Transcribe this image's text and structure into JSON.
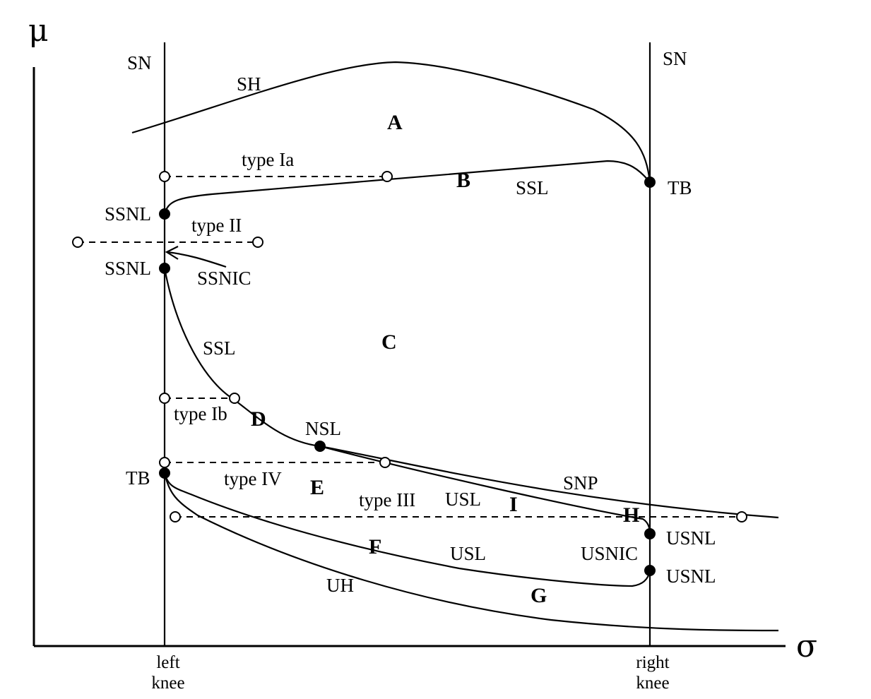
{
  "axes": {
    "y_symbol": "μ",
    "x_symbol": "σ"
  },
  "knees": {
    "left_line1": "left",
    "left_line2": "knee",
    "right_line1": "right",
    "right_line2": "knee"
  },
  "regions": [
    "A",
    "B",
    "C",
    "D",
    "E",
    "F",
    "G",
    "H",
    "I"
  ],
  "curve_labels": {
    "sn_left": "SN",
    "sn_right": "SN",
    "sh": "SH",
    "ssl_upper": "SSL",
    "ssl_lower": "SSL",
    "snp": "SNP",
    "usl_upper": "USL",
    "usl_lower": "USL",
    "uh": "UH",
    "ssnic": "SSNIC",
    "usnic": "USNIC",
    "nsl": "NSL"
  },
  "point_labels": {
    "ssnl_upper": "SSNL",
    "ssnl_lower": "SSNL",
    "tb_right": "TB",
    "tb_left": "TB",
    "usnl_upper": "USNL",
    "usnl_lower": "USNL"
  },
  "type_labels": {
    "type_ia": "type Ia",
    "type_ii": "type II",
    "type_ib": "type Ib",
    "type_iv": "type IV",
    "type_iii": "type III"
  }
}
